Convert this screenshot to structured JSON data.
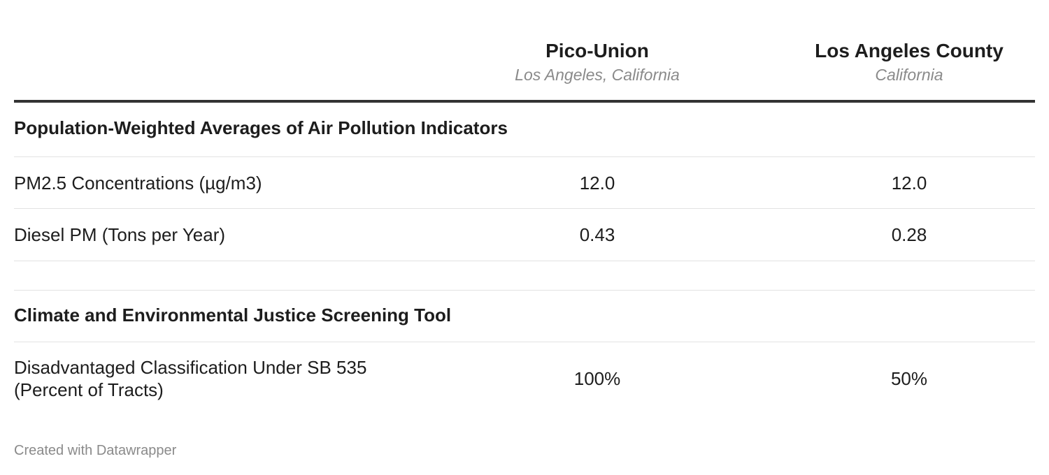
{
  "chart_data": {
    "type": "table",
    "columns": [
      {
        "title": "",
        "subtitle": ""
      },
      {
        "title": "Pico-Union",
        "subtitle": "Los Angeles, California"
      },
      {
        "title": "Los Angeles County",
        "subtitle": "California"
      }
    ],
    "sections": [
      {
        "title": "Population-Weighted Averages of Air Pollution Indicators",
        "rows": [
          {
            "label": "PM2.5 Concentrations (µg/m3)",
            "values": [
              "12.0",
              "12.0"
            ]
          },
          {
            "label": "Diesel PM (Tons per Year)",
            "values": [
              "0.43",
              "0.28"
            ]
          }
        ]
      },
      {
        "title": "Climate and Environmental Justice Screening Tool",
        "rows": [
          {
            "label_line1": "Disadvantaged Classification Under SB 535",
            "label_line2": "(Percent of Tracts)",
            "values": [
              "100%",
              "50%"
            ]
          }
        ]
      }
    ]
  },
  "footer": "Created with Datawrapper"
}
